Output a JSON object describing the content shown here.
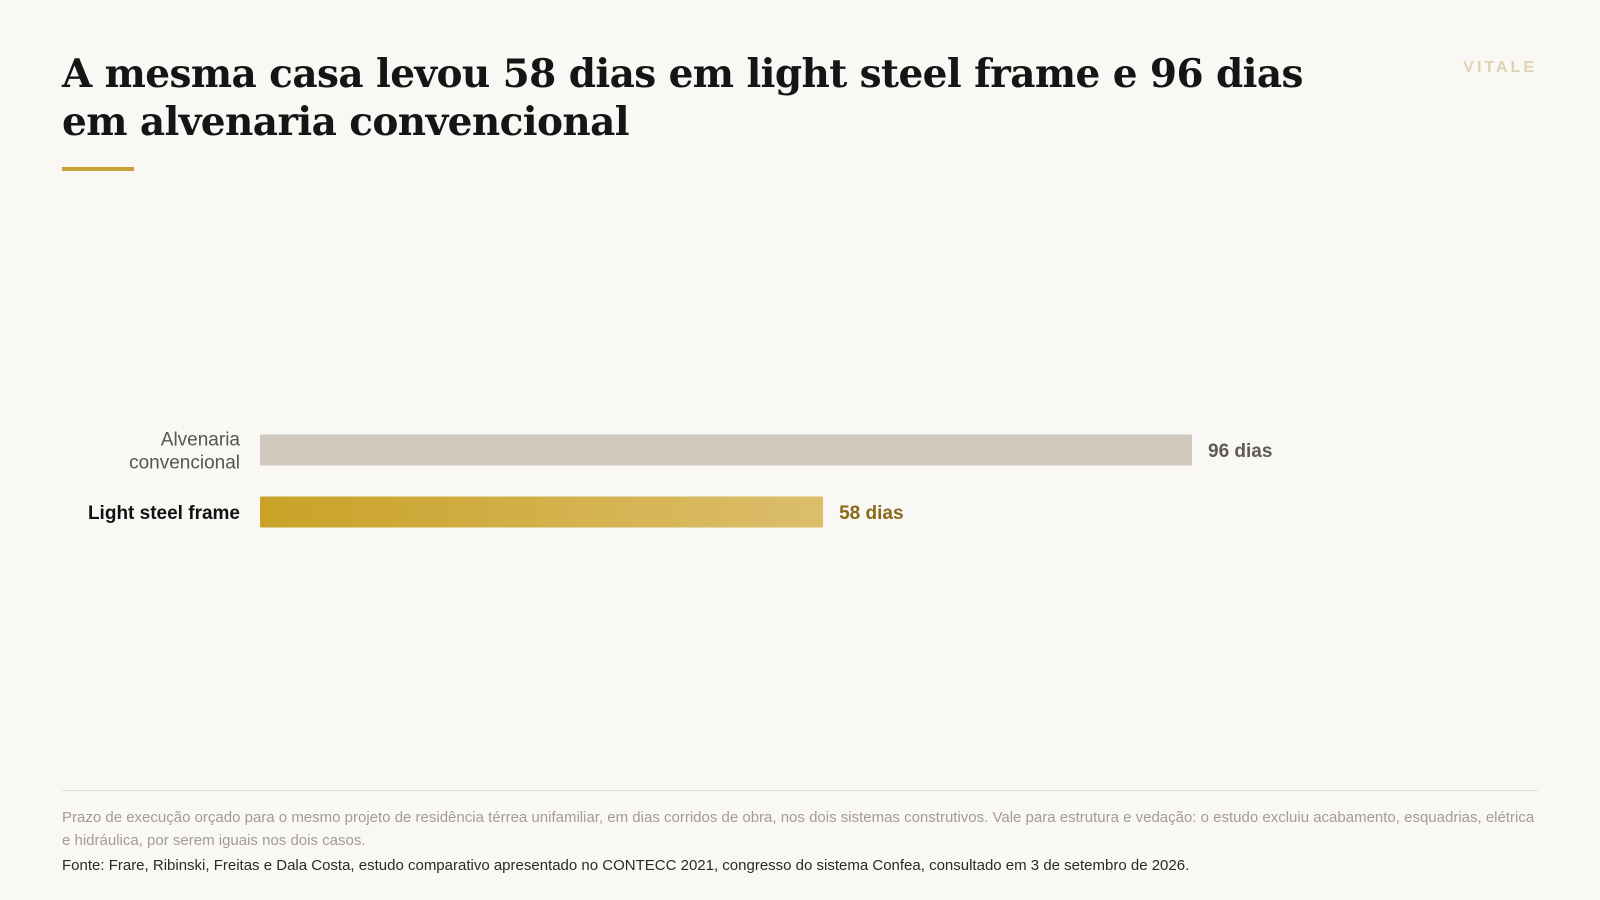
{
  "header": {
    "title": "A mesma casa levou 58 dias em light steel frame e 96 dias em alvenaria convencional",
    "brand": "VITALE"
  },
  "colors": {
    "background": "#f9f8f4",
    "accent": "#c9a233",
    "bar_neutral": "#d0c8bd",
    "bar_highlight_start": "#c9a227",
    "bar_highlight_end": "#dcbe6c",
    "value_neutral": "#5e5a55",
    "value_highlight": "#8a6a1a"
  },
  "chart_data": {
    "type": "bar",
    "orientation": "horizontal",
    "categories": [
      "Alvenaria convencional",
      "Light steel frame"
    ],
    "category_lines": [
      [
        "Alvenaria",
        "convencional"
      ],
      [
        "Light steel frame"
      ]
    ],
    "values": [
      96,
      58
    ],
    "value_labels": [
      "96 dias",
      "58 dias"
    ],
    "highlight": [
      false,
      true
    ],
    "unit": "dias",
    "xlim": [
      0,
      96
    ],
    "grid": false,
    "legend": "none"
  },
  "footer": {
    "note": "Prazo de execução orçado para o mesmo projeto de residência térrea unifamiliar, em dias corridos de obra, nos dois sistemas construtivos. Vale para estrutura e vedação: o estudo excluiu acabamento, esquadrias, elétrica e hidráulica, por serem iguais nos dois casos.",
    "source": "Fonte: Frare, Ribinski, Freitas e Dala Costa, estudo comparativo apresentado no CONTECC 2021, congresso do sistema Confea, consultado em 3 de setembro de 2026."
  }
}
